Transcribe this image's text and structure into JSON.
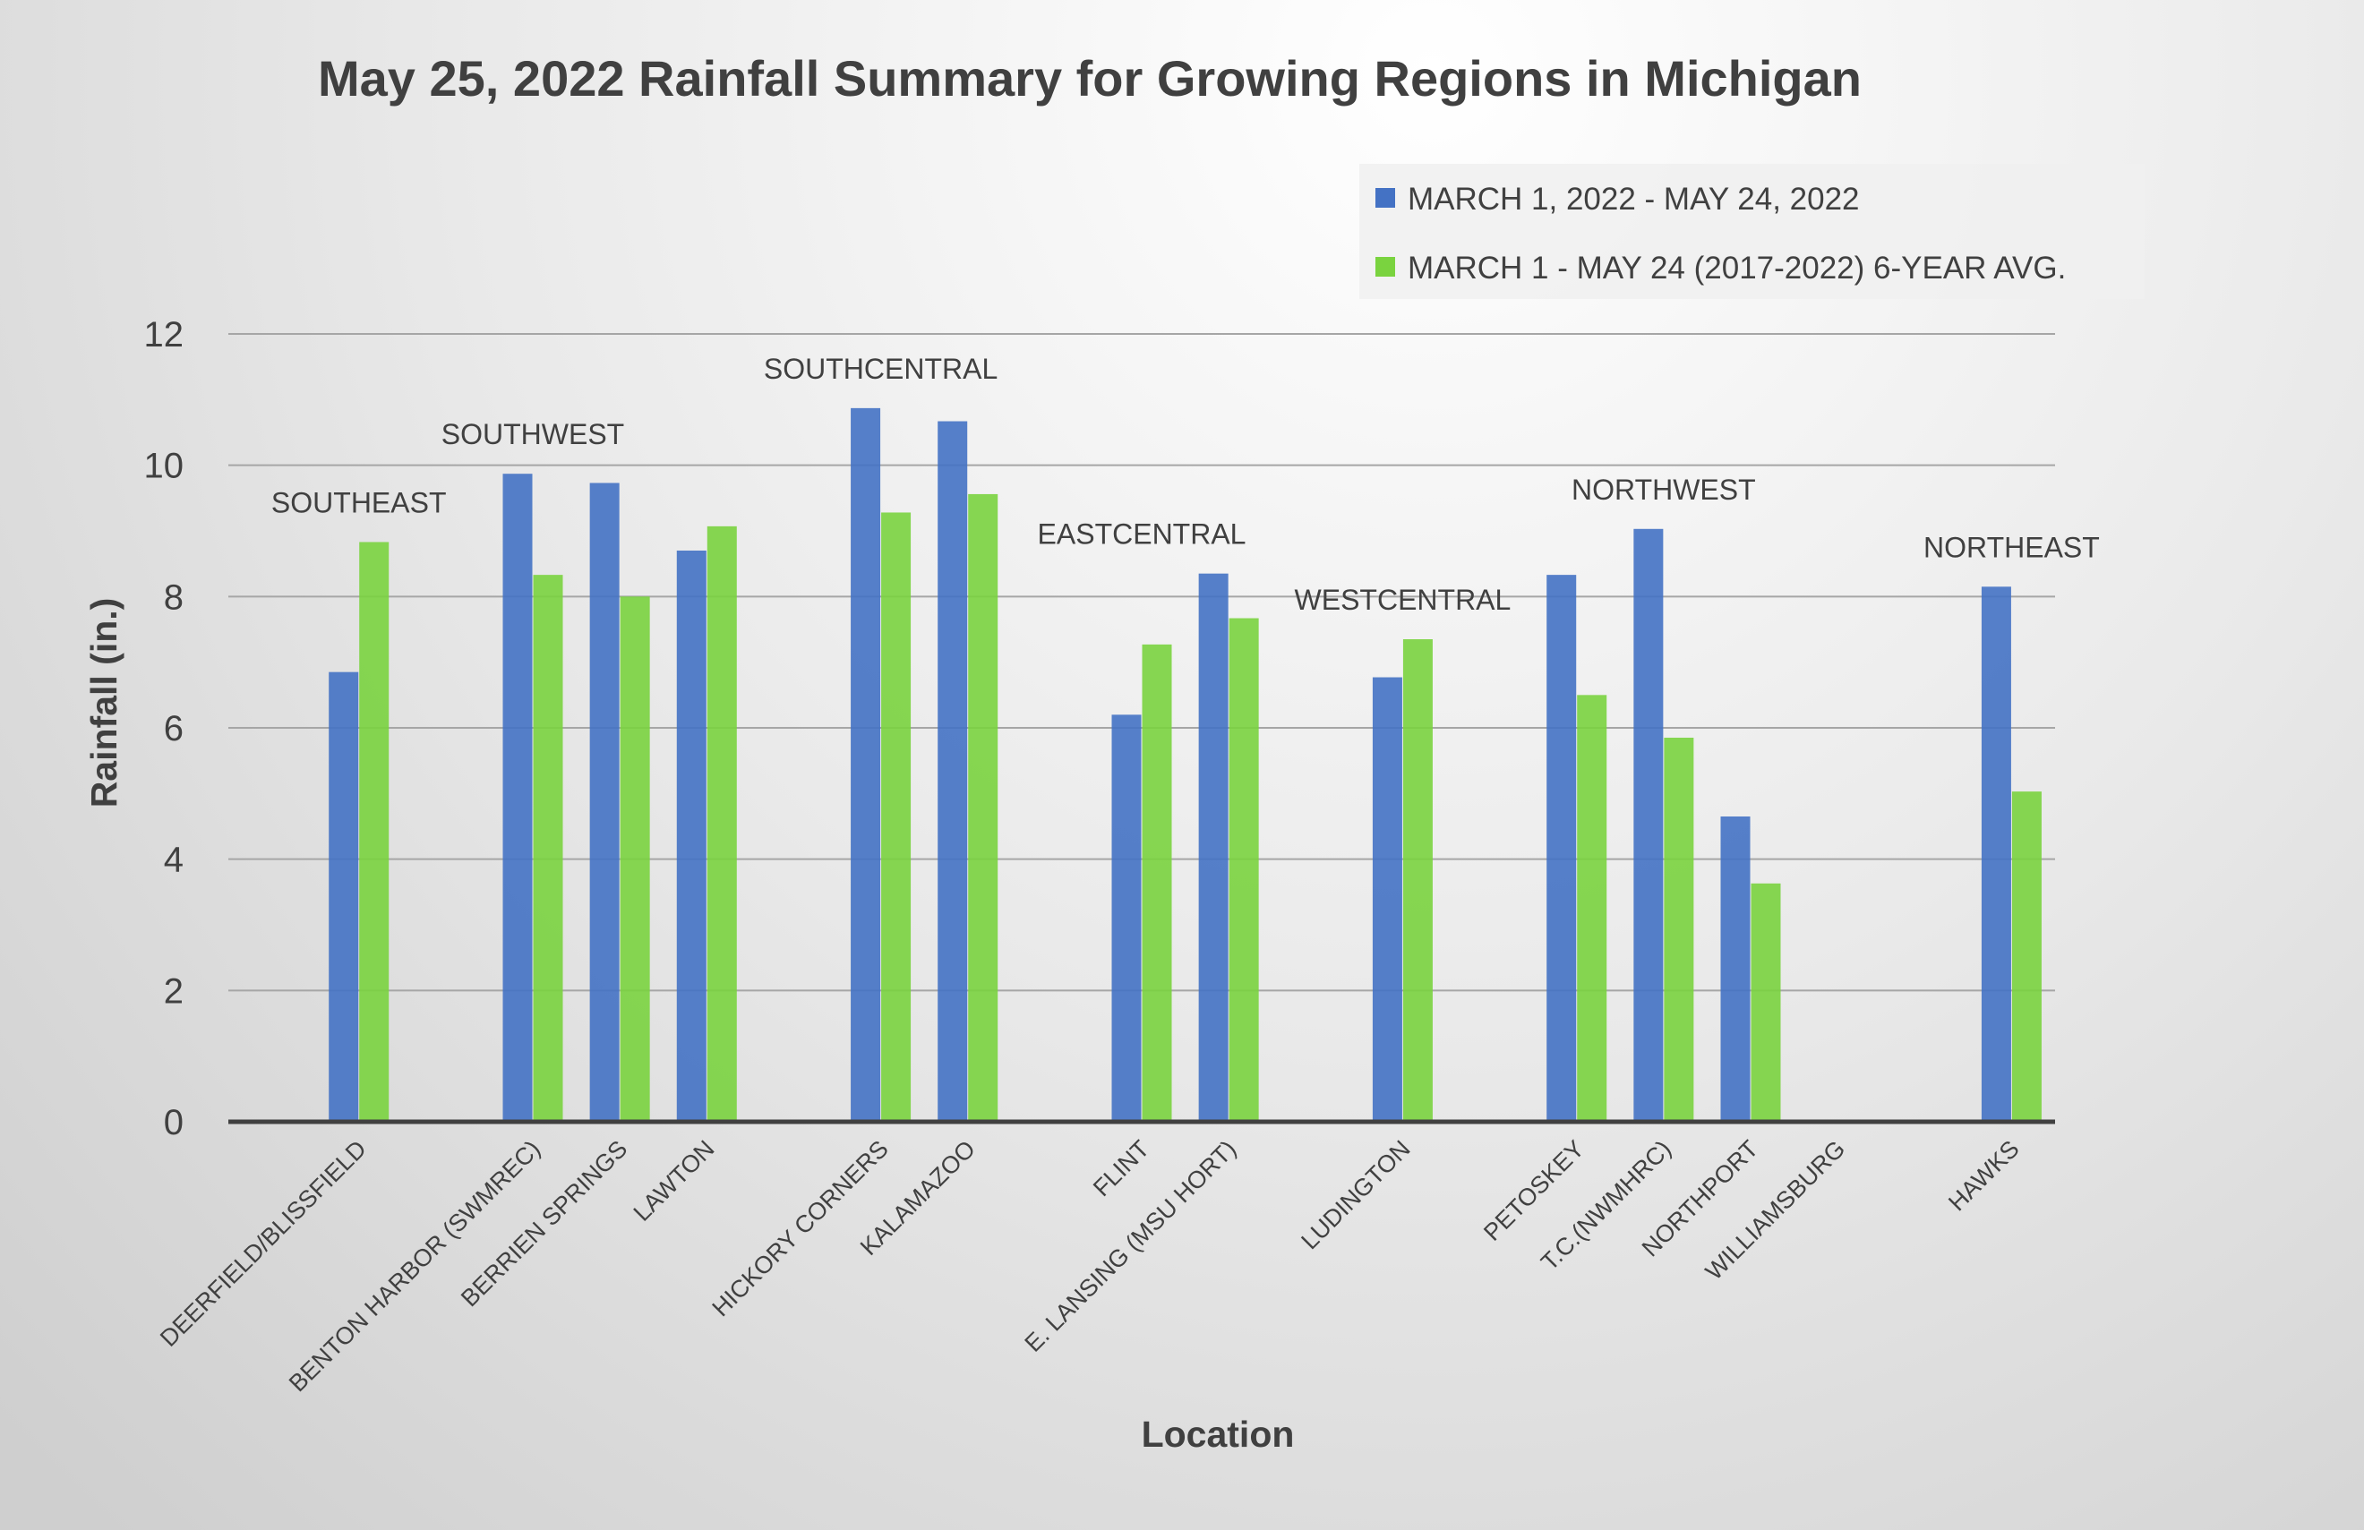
{
  "chart_data": {
    "type": "bar",
    "title": "May 25, 2022 Rainfall Summary for Growing Regions in Michigan",
    "xlabel": "Location",
    "ylabel": "Rainfall (in.)",
    "ylim": [
      0,
      12
    ],
    "yticks": [
      0,
      2,
      4,
      6,
      8,
      10,
      12
    ],
    "grid": true,
    "legend_position": "top-right",
    "categories": [
      "",
      "DEERFIELD/BLISSFIELD",
      "",
      "BENTON HARBOR (SWMREC)",
      "BERRIEN SPRINGS",
      "LAWTON",
      "",
      "HICKORY CORNERS",
      "KALAMAZOO",
      "",
      "FLINT",
      "E. LANSING (MSU HORT)",
      "",
      "LUDINGTON",
      "",
      "PETOSKEY",
      "T.C.(NWMHRC)",
      "NORTHPORT",
      "WILLIAMSBURG",
      "",
      "HAWKS"
    ],
    "series": [
      {
        "name": "MARCH 1, 2022 - MAY 24, 2022",
        "color": "#4472C4",
        "values": [
          null,
          6.85,
          null,
          9.87,
          9.73,
          8.7,
          null,
          10.87,
          10.67,
          null,
          6.2,
          8.35,
          null,
          6.77,
          null,
          8.33,
          9.03,
          4.65,
          null,
          null,
          8.15
        ]
      },
      {
        "name": "MARCH 1 - MAY 24 (2017-2022) 6-YEAR AVG.",
        "color": "#7AD33F",
        "values": [
          null,
          8.83,
          null,
          8.33,
          8.0,
          9.07,
          null,
          9.28,
          9.56,
          null,
          7.27,
          7.67,
          null,
          7.35,
          null,
          6.5,
          5.85,
          3.63,
          null,
          null,
          5.03
        ]
      }
    ],
    "annotations": [
      {
        "text": "SOUTHEAST",
        "category_index": 1,
        "value": 8.83
      },
      {
        "text": "SOUTHWEST",
        "category_index": 3,
        "value": 9.87
      },
      {
        "text": "SOUTHCENTRAL",
        "category_index": 7,
        "value": 10.87
      },
      {
        "text": "EASTCENTRAL",
        "category_index": 10,
        "value": 8.35
      },
      {
        "text": "WESTCENTRAL",
        "category_index": 13,
        "value": 7.35
      },
      {
        "text": "NORTHWEST",
        "category_index": 16,
        "value": 9.03
      },
      {
        "text": "NORTHEAST",
        "category_index": 20,
        "value": 8.15
      }
    ]
  }
}
